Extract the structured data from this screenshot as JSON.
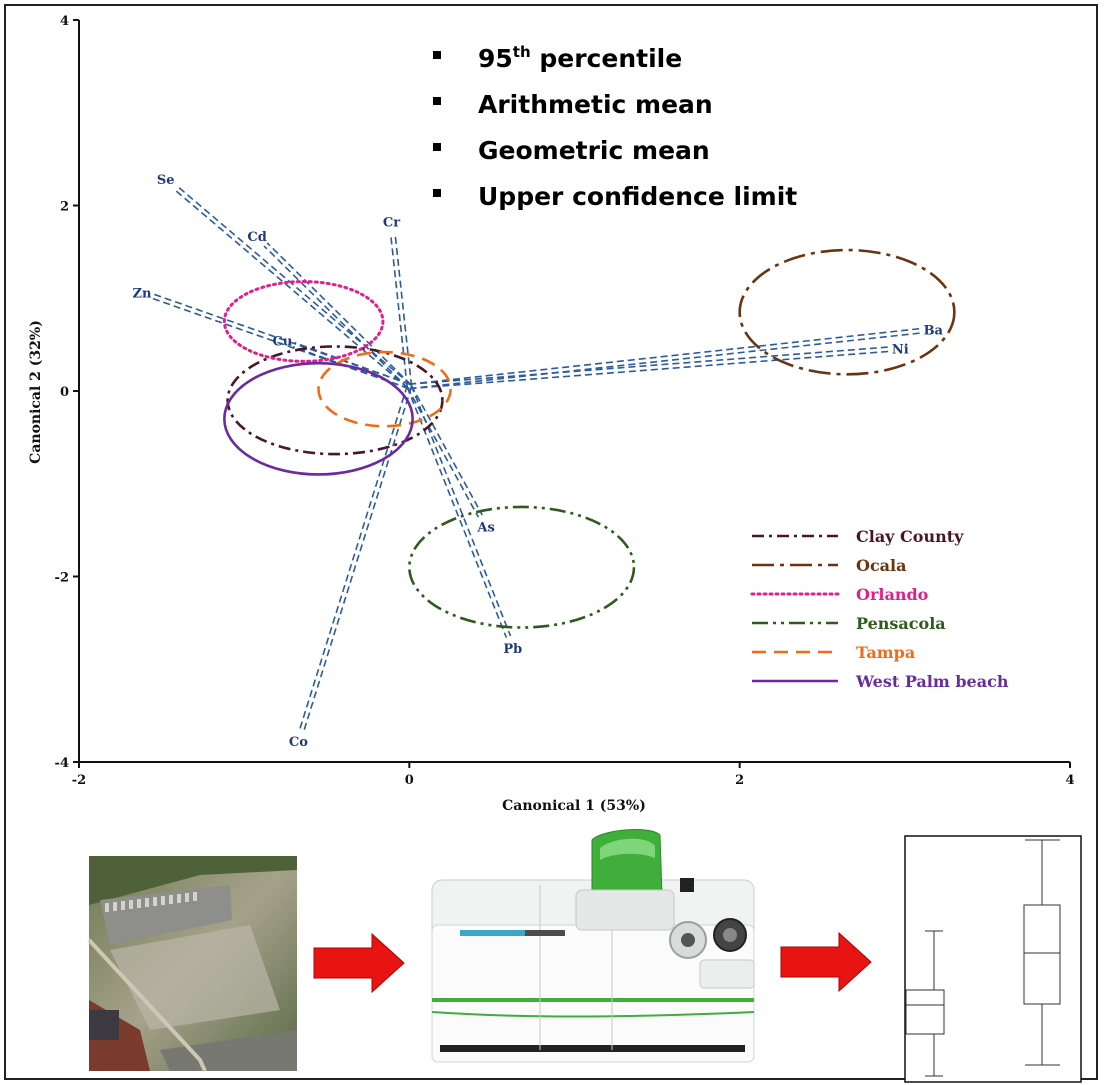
{
  "chart_data": {
    "type": "scatter",
    "title": "",
    "xlabel": "Canonical 1 (53%)",
    "ylabel": "Canonical 2 (32%)",
    "xlim": [
      -2,
      4
    ],
    "ylim": [
      -4,
      4
    ],
    "xticks": [
      -2,
      0,
      2,
      4
    ],
    "yticks": [
      -4,
      -2,
      0,
      2,
      4
    ],
    "grid": false,
    "statistics_legend": [
      {
        "base": "95",
        "sup": "th",
        "rest": " percentile"
      },
      {
        "base": "Arithmetic mean",
        "sup": "",
        "rest": ""
      },
      {
        "base": "Geometric mean",
        "sup": "",
        "rest": ""
      },
      {
        "base": "Upper confidence limit",
        "sup": "",
        "rest": ""
      }
    ],
    "vectors": [
      {
        "label": "Se",
        "x": -1.42,
        "y": 2.2
      },
      {
        "label": "Cd",
        "x": -0.87,
        "y": 1.58
      },
      {
        "label": "Zn",
        "x": -1.55,
        "y": 1.02
      },
      {
        "label": "Cu",
        "x": -0.7,
        "y": 0.5
      },
      {
        "label": "Cr",
        "x": -0.1,
        "y": 1.7
      },
      {
        "label": "Ba",
        "x": 3.1,
        "y": 0.65
      },
      {
        "label": "Ni",
        "x": 2.9,
        "y": 0.45
      },
      {
        "label": "As",
        "x": 0.43,
        "y": -1.35
      },
      {
        "label": "Pb",
        "x": 0.6,
        "y": -2.65
      },
      {
        "label": "Co",
        "x": -0.65,
        "y": -3.65
      }
    ],
    "origin": {
      "x": 0.0,
      "y": 0.05
    },
    "ellipses": [
      {
        "name": "Clay County",
        "cx": -0.45,
        "cy": -0.1,
        "rx": 0.65,
        "ry": 0.58,
        "color": "#4a1526",
        "dash": "dashdot"
      },
      {
        "name": "Ocala",
        "cx": 2.65,
        "cy": 0.85,
        "rx": 0.65,
        "ry": 0.67,
        "color": "#6b3410",
        "dash": "longdashdot"
      },
      {
        "name": "Orlando",
        "cx": -0.64,
        "cy": 0.75,
        "rx": 0.48,
        "ry": 0.43,
        "color": "#e0208a",
        "dash": "dotted"
      },
      {
        "name": "Pensacola",
        "cx": 0.68,
        "cy": -1.9,
        "rx": 0.68,
        "ry": 0.65,
        "color": "#2f5a1e",
        "dash": "dashdotdot"
      },
      {
        "name": "Tampa",
        "cx": -0.15,
        "cy": 0.02,
        "rx": 0.4,
        "ry": 0.4,
        "color": "#ee6c1a",
        "dash": "dashed"
      },
      {
        "name": "West Palm beach",
        "cx": -0.55,
        "cy": -0.3,
        "rx": 0.57,
        "ry": 0.6,
        "color": "#6a2aa0",
        "dash": "solid"
      }
    ],
    "legend_position": "bottom-right"
  },
  "colors": {
    "vector": "#2c5b9c",
    "arrow": "#e81414",
    "instrument_green": "#3fae3a"
  }
}
